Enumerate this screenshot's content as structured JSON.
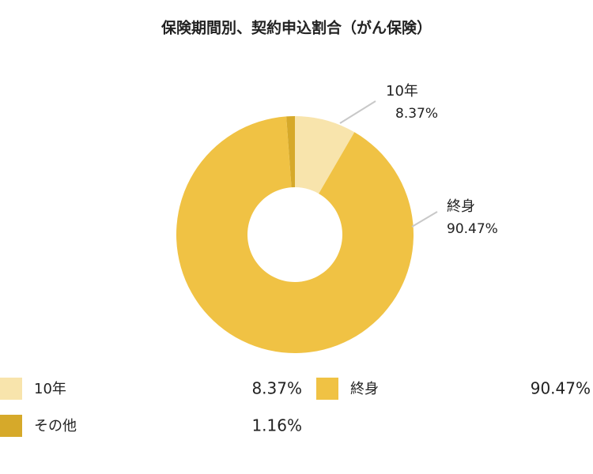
{
  "chart_data": {
    "type": "donut",
    "title": "保険期間別、契約申込割合（がん保険）",
    "categories": [
      "10年",
      "終身",
      "その他"
    ],
    "values": [
      8.37,
      90.47,
      1.16
    ],
    "value_labels": [
      "8.37%",
      "90.47%",
      "1.16%"
    ],
    "colors": [
      "#f8e4ac",
      "#f0c244",
      "#d6a92a"
    ]
  }
}
